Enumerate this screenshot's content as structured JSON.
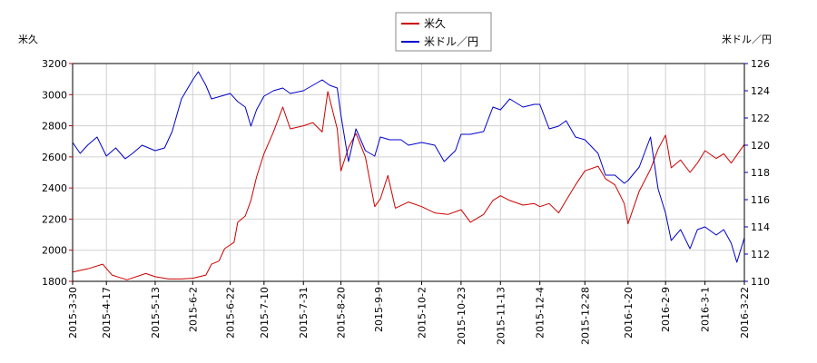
{
  "chart_data": {
    "type": "line",
    "y_left_label": "米久",
    "y_right_label": "米ドル／円",
    "y_left_lim": [
      1800,
      3200
    ],
    "y_left_ticks": [
      1800,
      2000,
      2200,
      2400,
      2600,
      2800,
      3000,
      3200
    ],
    "y_right_lim": [
      110,
      126
    ],
    "y_right_ticks": [
      110,
      112,
      114,
      116,
      118,
      120,
      122,
      124,
      126
    ],
    "x_range": [
      "2015-3-30",
      "2016-3-22"
    ],
    "x_ticks": [
      "2015-3-30",
      "2015-4-17",
      "2015-5-13",
      "2015-6-2",
      "2015-6-22",
      "2015-7-10",
      "2015-7-31",
      "2015-8-20",
      "2015-9-9",
      "2015-10-2",
      "2015-10-23",
      "2015-11-13",
      "2015-12-4",
      "2015-12-28",
      "2016-1-20",
      "2016-2-9",
      "2016-3-1",
      "2016-3-22"
    ],
    "grid": true,
    "legend_placement": "top-center",
    "series": [
      {
        "name": "米久",
        "axis": "left",
        "color": "#cc0000",
        "points": [
          [
            "2015-3-30",
            1860
          ],
          [
            "2015-4-7",
            1880
          ],
          [
            "2015-4-15",
            1910
          ],
          [
            "2015-4-20",
            1840
          ],
          [
            "2015-4-28",
            1810
          ],
          [
            "2015-5-8",
            1850
          ],
          [
            "2015-5-13",
            1830
          ],
          [
            "2015-5-20",
            1815
          ],
          [
            "2015-5-27",
            1815
          ],
          [
            "2015-6-2",
            1820
          ],
          [
            "2015-6-9",
            1840
          ],
          [
            "2015-6-12",
            1910
          ],
          [
            "2015-6-16",
            1930
          ],
          [
            "2015-6-19",
            2010
          ],
          [
            "2015-6-24",
            2050
          ],
          [
            "2015-6-26",
            2180
          ],
          [
            "2015-6-30",
            2220
          ],
          [
            "2015-7-3",
            2320
          ],
          [
            "2015-7-6",
            2470
          ],
          [
            "2015-7-10",
            2620
          ],
          [
            "2015-7-15",
            2760
          ],
          [
            "2015-7-20",
            2920
          ],
          [
            "2015-7-24",
            2780
          ],
          [
            "2015-7-31",
            2800
          ],
          [
            "2015-8-5",
            2820
          ],
          [
            "2015-8-10",
            2760
          ],
          [
            "2015-8-13",
            3020
          ],
          [
            "2015-8-18",
            2780
          ],
          [
            "2015-8-20",
            2510
          ],
          [
            "2015-8-24",
            2660
          ],
          [
            "2015-8-28",
            2750
          ],
          [
            "2015-9-2",
            2600
          ],
          [
            "2015-9-7",
            2280
          ],
          [
            "2015-9-10",
            2330
          ],
          [
            "2015-9-14",
            2480
          ],
          [
            "2015-9-18",
            2270
          ],
          [
            "2015-9-25",
            2310
          ],
          [
            "2015-10-2",
            2280
          ],
          [
            "2015-10-9",
            2240
          ],
          [
            "2015-10-16",
            2230
          ],
          [
            "2015-10-23",
            2260
          ],
          [
            "2015-10-28",
            2180
          ],
          [
            "2015-11-4",
            2230
          ],
          [
            "2015-11-9",
            2320
          ],
          [
            "2015-11-13",
            2350
          ],
          [
            "2015-11-18",
            2320
          ],
          [
            "2015-11-25",
            2290
          ],
          [
            "2015-12-1",
            2300
          ],
          [
            "2015-12-4",
            2280
          ],
          [
            "2015-12-9",
            2300
          ],
          [
            "2015-12-14",
            2240
          ],
          [
            "2015-12-18",
            2320
          ],
          [
            "2015-12-23",
            2420
          ],
          [
            "2015-12-28",
            2510
          ],
          [
            "2016-1-4",
            2540
          ],
          [
            "2016-1-8",
            2460
          ],
          [
            "2016-1-13",
            2420
          ],
          [
            "2016-1-18",
            2300
          ],
          [
            "2016-1-20",
            2170
          ],
          [
            "2016-1-26",
            2380
          ],
          [
            "2016-2-1",
            2520
          ],
          [
            "2016-2-5",
            2650
          ],
          [
            "2016-2-9",
            2740
          ],
          [
            "2016-2-12",
            2530
          ],
          [
            "2016-2-17",
            2580
          ],
          [
            "2016-2-22",
            2500
          ],
          [
            "2016-2-26",
            2560
          ],
          [
            "2016-3-1",
            2640
          ],
          [
            "2016-3-7",
            2590
          ],
          [
            "2016-3-11",
            2620
          ],
          [
            "2016-3-15",
            2560
          ],
          [
            "2016-3-22",
            2680
          ]
        ]
      },
      {
        "name": "米ドル／円",
        "axis": "right",
        "color": "#0000cc",
        "points": [
          [
            "2015-3-30",
            120.2
          ],
          [
            "2015-4-3",
            119.4
          ],
          [
            "2015-4-7",
            120.0
          ],
          [
            "2015-4-12",
            120.6
          ],
          [
            "2015-4-17",
            119.2
          ],
          [
            "2015-4-22",
            119.8
          ],
          [
            "2015-4-27",
            119.0
          ],
          [
            "2015-5-1",
            119.4
          ],
          [
            "2015-5-6",
            120.0
          ],
          [
            "2015-5-13",
            119.6
          ],
          [
            "2015-5-18",
            119.8
          ],
          [
            "2015-5-22",
            121.0
          ],
          [
            "2015-5-27",
            123.4
          ],
          [
            "2015-6-2",
            124.8
          ],
          [
            "2015-6-5",
            125.4
          ],
          [
            "2015-6-9",
            124.4
          ],
          [
            "2015-6-12",
            123.4
          ],
          [
            "2015-6-17",
            123.6
          ],
          [
            "2015-6-22",
            123.8
          ],
          [
            "2015-6-26",
            123.2
          ],
          [
            "2015-6-30",
            122.8
          ],
          [
            "2015-7-3",
            121.4
          ],
          [
            "2015-7-6",
            122.6
          ],
          [
            "2015-7-10",
            123.6
          ],
          [
            "2015-7-15",
            124.0
          ],
          [
            "2015-7-20",
            124.2
          ],
          [
            "2015-7-24",
            123.8
          ],
          [
            "2015-7-31",
            124.0
          ],
          [
            "2015-8-5",
            124.4
          ],
          [
            "2015-8-10",
            124.8
          ],
          [
            "2015-8-14",
            124.4
          ],
          [
            "2015-8-18",
            124.2
          ],
          [
            "2015-8-20",
            122.2
          ],
          [
            "2015-8-24",
            118.8
          ],
          [
            "2015-8-28",
            121.2
          ],
          [
            "2015-9-2",
            119.6
          ],
          [
            "2015-9-7",
            119.2
          ],
          [
            "2015-9-10",
            120.6
          ],
          [
            "2015-9-15",
            120.4
          ],
          [
            "2015-9-21",
            120.4
          ],
          [
            "2015-9-25",
            120.0
          ],
          [
            "2015-10-2",
            120.2
          ],
          [
            "2015-10-9",
            120.0
          ],
          [
            "2015-10-14",
            118.8
          ],
          [
            "2015-10-20",
            119.6
          ],
          [
            "2015-10-23",
            120.8
          ],
          [
            "2015-10-28",
            120.8
          ],
          [
            "2015-11-4",
            121.0
          ],
          [
            "2015-11-9",
            122.8
          ],
          [
            "2015-11-13",
            122.6
          ],
          [
            "2015-11-18",
            123.4
          ],
          [
            "2015-11-25",
            122.8
          ],
          [
            "2015-12-1",
            123.0
          ],
          [
            "2015-12-4",
            123.0
          ],
          [
            "2015-12-9",
            121.2
          ],
          [
            "2015-12-14",
            121.4
          ],
          [
            "2015-12-18",
            121.8
          ],
          [
            "2015-12-23",
            120.6
          ],
          [
            "2015-12-28",
            120.4
          ],
          [
            "2016-1-4",
            119.4
          ],
          [
            "2016-1-8",
            117.8
          ],
          [
            "2016-1-13",
            117.8
          ],
          [
            "2016-1-18",
            117.2
          ],
          [
            "2016-1-20",
            117.4
          ],
          [
            "2016-1-26",
            118.4
          ],
          [
            "2016-2-1",
            120.6
          ],
          [
            "2016-2-5",
            116.8
          ],
          [
            "2016-2-9",
            115.0
          ],
          [
            "2016-2-12",
            113.0
          ],
          [
            "2016-2-17",
            113.8
          ],
          [
            "2016-2-22",
            112.4
          ],
          [
            "2016-2-26",
            113.8
          ],
          [
            "2016-3-1",
            114.0
          ],
          [
            "2016-3-7",
            113.4
          ],
          [
            "2016-3-11",
            113.8
          ],
          [
            "2016-3-15",
            112.8
          ],
          [
            "2016-3-18",
            111.4
          ],
          [
            "2016-3-22",
            113.2
          ]
        ]
      }
    ]
  }
}
